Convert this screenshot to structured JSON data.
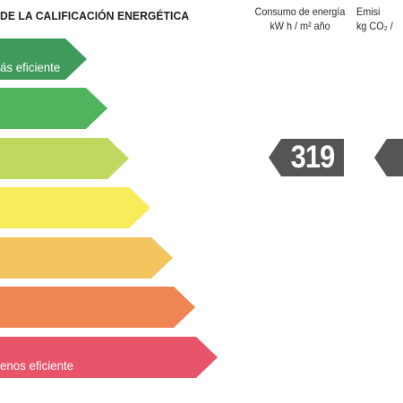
{
  "title": "DE LA CALIFICACIÓN ENERGÉTICA",
  "columns": {
    "energy": {
      "line1": "Consumo de energía",
      "line2": "kW h / m² año"
    },
    "emissions": {
      "line1": "Emisi",
      "line2": "kg CO₂ /"
    }
  },
  "bands": [
    {
      "label": "ás eficiente",
      "color": "#3f9a5c"
    },
    {
      "label": "",
      "color": "#52b35f"
    },
    {
      "label": "",
      "color": "#bfd85f"
    },
    {
      "label": "",
      "color": "#f8ec5a"
    },
    {
      "label": "",
      "color": "#f2c45e"
    },
    {
      "label": "",
      "color": "#ee8552"
    },
    {
      "label": "enos eficiente",
      "color": "#e8546a"
    }
  ],
  "rating": {
    "energy_value": "319",
    "emissions_value": "",
    "indicator_color": "#555555"
  }
}
